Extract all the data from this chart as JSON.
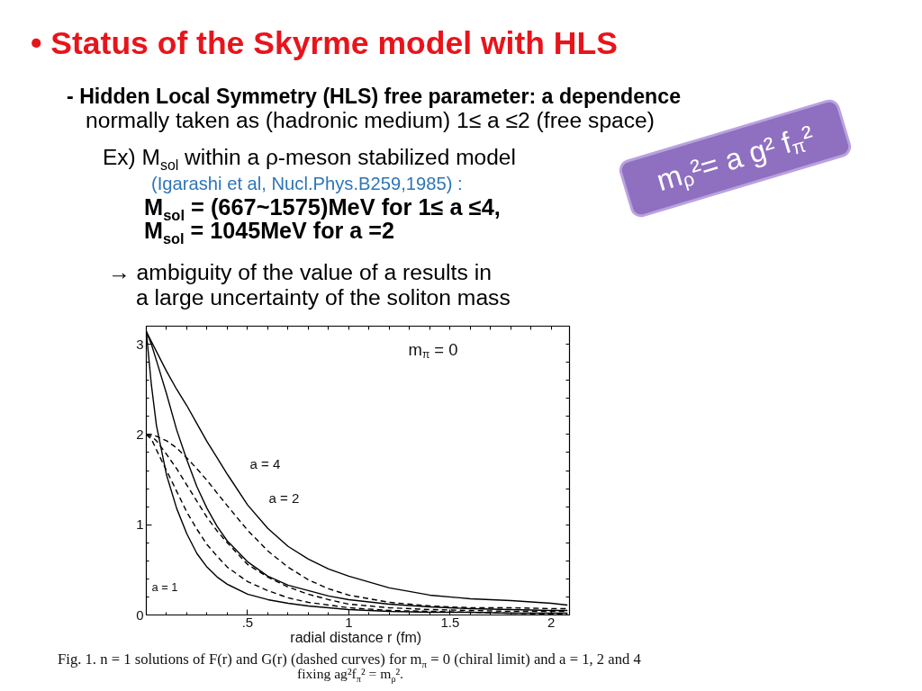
{
  "chart_data": {
    "type": "line",
    "title": "• Status of the Skyrme model with HLS",
    "xlabel": "radial distance  r (fm)",
    "x": [
      0,
      0.025,
      0.05,
      0.1,
      0.15,
      0.2,
      0.25,
      0.3,
      0.35,
      0.4,
      0.5,
      0.6,
      0.7,
      0.8,
      0.9,
      1.0,
      1.2,
      1.4,
      1.6,
      1.8,
      2.0,
      2.08
    ],
    "series": [
      {
        "color": "#000000",
        "line_style": "solid",
        "values": [
          3.14,
          2.55,
          2.1,
          1.55,
          1.18,
          0.9,
          0.68,
          0.53,
          0.42,
          0.34,
          0.23,
          0.17,
          0.13,
          0.1,
          0.08,
          0.06,
          0.04,
          0.03,
          0.03,
          0.02,
          0.02,
          0.02
        ]
      },
      {
        "color": "#000000",
        "line_style": "solid",
        "values": [
          3.14,
          3.0,
          2.82,
          2.45,
          2.05,
          1.72,
          1.42,
          1.18,
          0.98,
          0.82,
          0.59,
          0.43,
          0.33,
          0.27,
          0.21,
          0.17,
          0.12,
          0.09,
          0.07,
          0.06,
          0.05,
          0.05
        ]
      },
      {
        "color": "#000000",
        "line_style": "solid",
        "values": [
          3.14,
          3.03,
          2.92,
          2.7,
          2.5,
          2.32,
          2.12,
          1.92,
          1.74,
          1.56,
          1.22,
          0.96,
          0.76,
          0.62,
          0.51,
          0.43,
          0.3,
          0.22,
          0.18,
          0.16,
          0.13,
          0.11
        ]
      },
      {
        "color": "#000000",
        "line_style": "dashed",
        "values": [
          2.0,
          1.95,
          1.83,
          1.6,
          1.37,
          1.14,
          0.95,
          0.78,
          0.65,
          0.53,
          0.37,
          0.27,
          0.19,
          0.14,
          0.11,
          0.08,
          0.05,
          0.04,
          0.03,
          0.02,
          0.01,
          0.01
        ]
      },
      {
        "color": "#000000",
        "line_style": "dashed",
        "values": [
          2.0,
          1.98,
          1.93,
          1.78,
          1.62,
          1.44,
          1.26,
          1.08,
          0.93,
          0.8,
          0.56,
          0.42,
          0.31,
          0.23,
          0.17,
          0.12,
          0.08,
          0.06,
          0.05,
          0.04,
          0.04,
          0.04
        ]
      },
      {
        "color": "#000000",
        "line_style": "dashed",
        "values": [
          2.0,
          2.0,
          1.98,
          1.93,
          1.85,
          1.74,
          1.62,
          1.49,
          1.35,
          1.21,
          0.94,
          0.71,
          0.53,
          0.39,
          0.29,
          0.22,
          0.14,
          0.1,
          0.08,
          0.08,
          0.07,
          0.07
        ]
      }
    ],
    "xlim": [
      0,
      2.09
    ],
    "ylim": [
      0,
      3.2
    ],
    "xticks": [
      {
        "value": 0,
        "label": null
      },
      {
        "value": 0.5,
        "label": ".5"
      },
      1,
      1.5,
      2
    ],
    "yticks": [
      0,
      1,
      2,
      3
    ],
    "annotations": [
      "- Hidden Local Symmetry (HLS) free parameter: a dependence",
      "normally taken as (hadronic medium) 1≤ a ≤2 (free space)",
      "Ex) M$_{sol}$ within a ρ-meson stabilized model",
      "(Igarashi et al, Nucl.Phys.B259,1985) :",
      "M$_{sol}$ = (667~1575)MeV for 1≤ a ≤4,",
      "M$_{sol}$ = 1045MeV for a =2",
      "→ ambiguity of the value of a results in",
      "a large uncertainty of the soliton mass",
      "m$_{ρ}$²= a g² f$_{π}$²",
      "m$_{π}$ = 0",
      "a = 4",
      "a = 2",
      "a = 1",
      "Fig. 1. n = 1 solutions of F(r) and G(r) (dashed curves) for m$_{π}$ = 0 (chiral limit) and a = 1, 2 and 4",
      "fixing ag²f$_{π}$² = m$_{ρ}$²."
    ]
  }
}
